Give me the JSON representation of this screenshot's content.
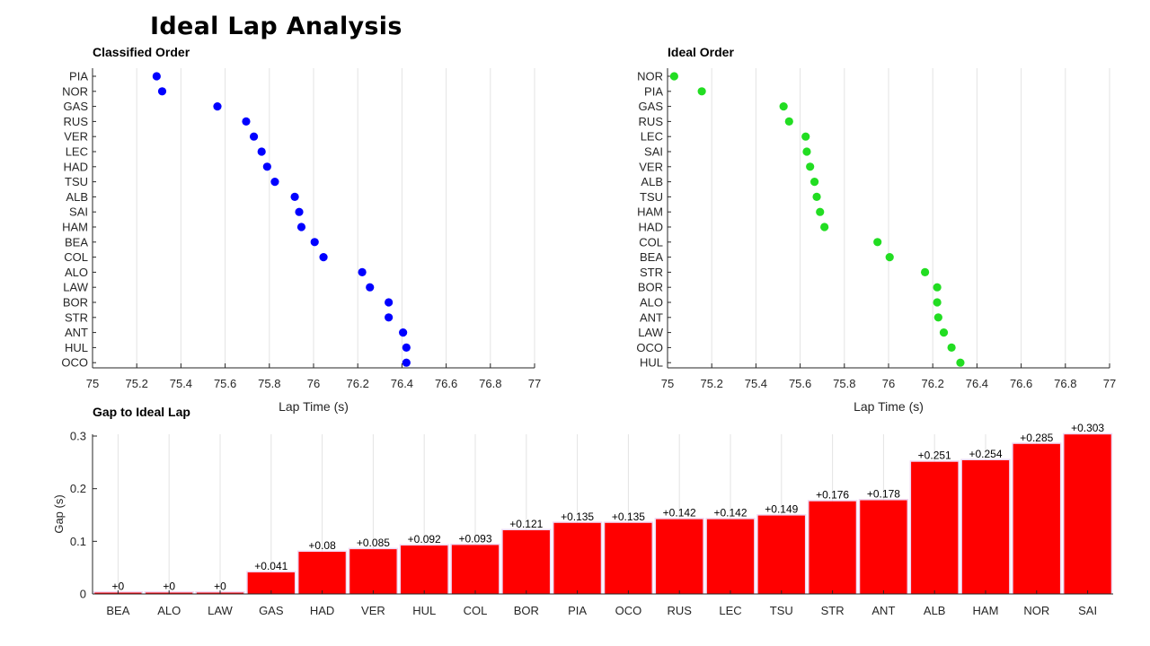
{
  "title": "Ideal Lap Analysis",
  "chart_data": [
    {
      "type": "scatter",
      "title": "Classified Order",
      "xlabel": "Lap Time (s)",
      "ylabel": "",
      "xlim": [
        75,
        77
      ],
      "xticks": [
        "75",
        "75.2",
        "75.4",
        "75.6",
        "75.8",
        "76",
        "76.2",
        "76.4",
        "76.6",
        "76.8",
        "77"
      ],
      "grid": "x",
      "marker_color": "#0000ff",
      "categories": [
        "PIA",
        "NOR",
        "GAS",
        "RUS",
        "VER",
        "LEC",
        "HAD",
        "TSU",
        "ALB",
        "SAI",
        "HAM",
        "BEA",
        "COL",
        "ALO",
        "LAW",
        "BOR",
        "STR",
        "ANT",
        "HUL",
        "OCO"
      ],
      "values": [
        75.29,
        75.315,
        75.565,
        75.695,
        75.73,
        75.765,
        75.79,
        75.825,
        75.915,
        75.935,
        75.945,
        76.005,
        76.045,
        76.22,
        76.255,
        76.34,
        76.34,
        76.405,
        76.42,
        76.42
      ]
    },
    {
      "type": "scatter",
      "title": "Ideal Order",
      "xlabel": "Lap Time (s)",
      "ylabel": "",
      "xlim": [
        75,
        77
      ],
      "xticks": [
        "75",
        "75.2",
        "75.4",
        "75.6",
        "75.8",
        "76",
        "76.2",
        "76.4",
        "76.6",
        "76.8",
        "77"
      ],
      "grid": "x",
      "marker_color": "#22dd22",
      "categories": [
        "NOR",
        "PIA",
        "GAS",
        "RUS",
        "LEC",
        "SAI",
        "VER",
        "ALB",
        "TSU",
        "HAM",
        "HAD",
        "COL",
        "BEA",
        "STR",
        "BOR",
        "ALO",
        "ANT",
        "LAW",
        "OCO",
        "HUL"
      ],
      "values": [
        75.03,
        75.155,
        75.525,
        75.55,
        75.625,
        75.63,
        75.645,
        75.665,
        75.675,
        75.69,
        75.71,
        75.95,
        76.005,
        76.165,
        76.22,
        76.22,
        76.225,
        76.25,
        76.285,
        76.325
      ]
    },
    {
      "type": "bar",
      "title": "Gap to Ideal Lap",
      "xlabel": "",
      "ylabel": "Gap (s)",
      "ylim": [
        0,
        0.3
      ],
      "yticks": [
        "0",
        "0.1",
        "0.2",
        "0.3"
      ],
      "grid": "x",
      "bar_color": "#ff0000",
      "categories": [
        "BEA",
        "ALO",
        "LAW",
        "GAS",
        "HAD",
        "VER",
        "HUL",
        "COL",
        "BOR",
        "PIA",
        "OCO",
        "RUS",
        "LEC",
        "TSU",
        "STR",
        "ANT",
        "ALB",
        "HAM",
        "NOR",
        "SAI"
      ],
      "values": [
        0,
        0,
        0,
        0.041,
        0.08,
        0.085,
        0.092,
        0.093,
        0.121,
        0.135,
        0.135,
        0.142,
        0.142,
        0.149,
        0.176,
        0.178,
        0.251,
        0.254,
        0.285,
        0.303
      ],
      "data_labels": [
        "+0",
        "+0",
        "+0",
        "+0.041",
        "+0.08",
        "+0.085",
        "+0.092",
        "+0.093",
        "+0.121",
        "+0.135",
        "+0.135",
        "+0.142",
        "+0.142",
        "+0.149",
        "+0.176",
        "+0.178",
        "+0.251",
        "+0.254",
        "+0.285",
        "+0.303"
      ]
    }
  ]
}
